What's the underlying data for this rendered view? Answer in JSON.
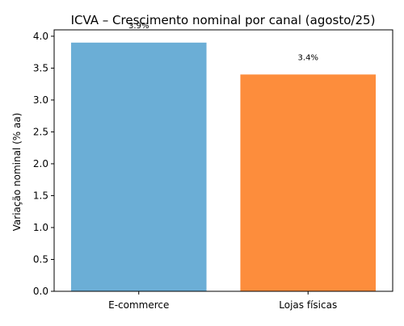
{
  "chart_data": {
    "type": "bar",
    "title": "ICVA – Crescimento nominal por canal (agosto/25)",
    "xlabel": "",
    "ylabel": "Variação nominal (% aa)",
    "categories": [
      "E-commerce",
      "Lojas físicas"
    ],
    "values": [
      3.9,
      3.4
    ],
    "data_labels": [
      "3.9%",
      "3.4%"
    ],
    "colors": [
      "#6baed6",
      "#fd8d3c"
    ],
    "ylim": [
      0,
      4.1
    ],
    "yticks": [
      0.0,
      0.5,
      1.0,
      1.5,
      2.0,
      2.5,
      3.0,
      3.5,
      4.0
    ],
    "ytick_labels": [
      "0.0",
      "0.5",
      "1.0",
      "1.5",
      "2.0",
      "2.5",
      "3.0",
      "3.5",
      "4.0"
    ],
    "grid": false,
    "legend": "none"
  }
}
